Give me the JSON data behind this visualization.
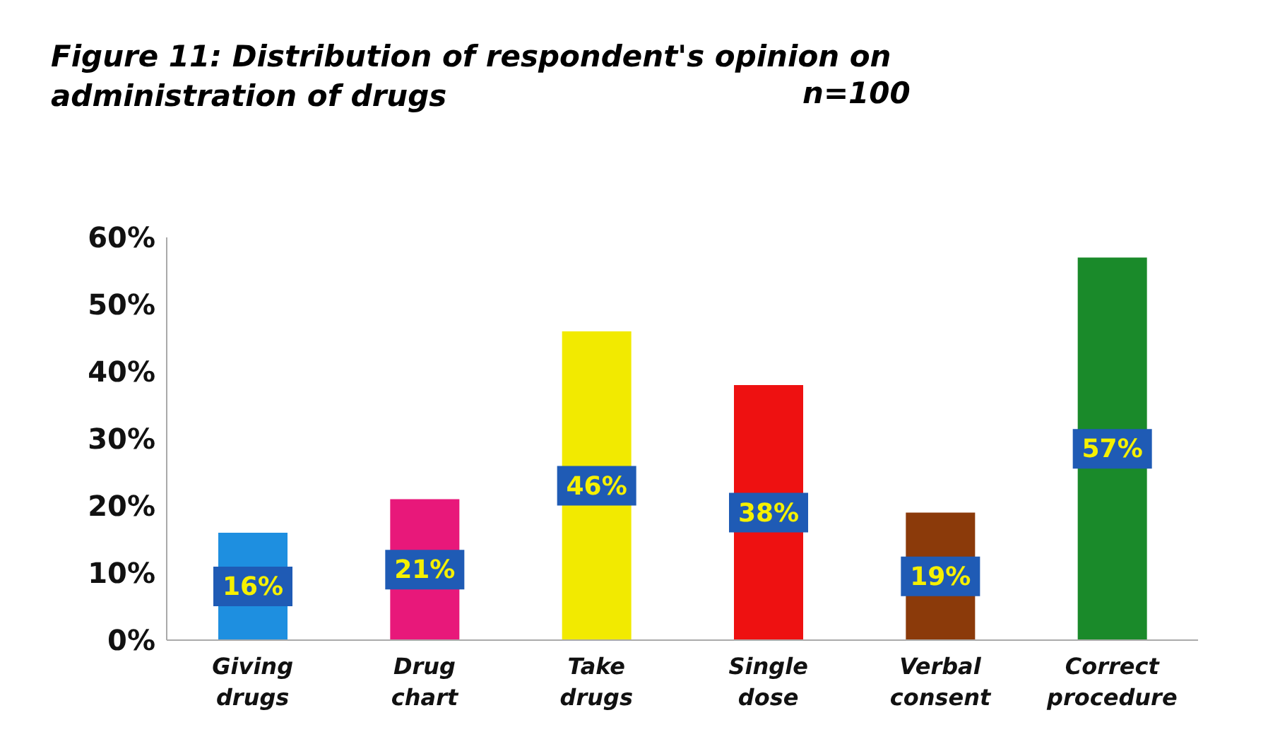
{
  "chart_data": {
    "type": "bar",
    "title": "Figure 11: Distribution of respondent's opinion on administration of  drugs",
    "subtitle": "n=100",
    "categories": [
      "Giving drugs",
      "Drug chart",
      "Take drugs",
      "Single dose",
      "Verbal consent",
      "Correct procedure"
    ],
    "values": [
      16,
      21,
      46,
      38,
      19,
      57
    ],
    "value_labels": [
      "16%",
      "21%",
      "46%",
      "38%",
      "19%",
      "57%"
    ],
    "colors": [
      "#1e8fe0",
      "#e8187a",
      "#f2ea00",
      "#ee1111",
      "#8b3a0a",
      "#1a8a2a"
    ],
    "ylim": [
      0,
      60
    ],
    "yticks": [
      {
        "value": 0,
        "label": "0%"
      },
      {
        "value": 10,
        "label": "10%"
      },
      {
        "value": 20,
        "label": "20%"
      },
      {
        "value": 30,
        "label": "30%"
      },
      {
        "value": 40,
        "label": "40%"
      },
      {
        "value": 50,
        "label": "50%"
      },
      {
        "value": 60,
        "label": "60%"
      }
    ],
    "grid": false,
    "legend": false
  }
}
